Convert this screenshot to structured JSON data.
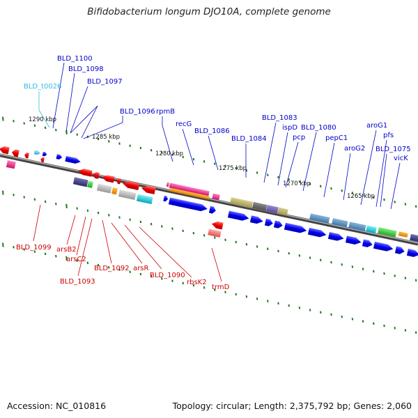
{
  "title": "Bifidobacterium longum DJO10A, complete genome",
  "footer": {
    "accession": "Accession: NC_010816",
    "summary": "Topology: circular; Length: 2,375,792 bp; Genes: 2,060"
  },
  "colors": {
    "forward_label": "#0000cc",
    "reverse_label": "#cc0000",
    "trna_label": "#33bbdd",
    "tick": "#1a7a1a",
    "backbone": "#888888"
  },
  "scale_labels": [
    "1290 kbp",
    "1285 kbp",
    "1280 kbp",
    "1275 kbp",
    "1270 kbp",
    "1265 kbp"
  ],
  "forward_labels": [
    "BLD_1100",
    "BLD_1098",
    "BLD_1097",
    "BLD_1096",
    "rpmB",
    "recG",
    "BLD_1086",
    "BLD_1084",
    "BLD_1083",
    "ispD",
    "pcp",
    "BLD_1080",
    "pepC1",
    "aroG2",
    "aroG1",
    "pfs",
    "BLD_1075",
    "vicK"
  ],
  "trna_labels": [
    "BLD_t0026"
  ],
  "reverse_labels": [
    "BLD_1099",
    "arsB2",
    "arsC2",
    "BLD_1093",
    "BLD_1092",
    "arsR",
    "BLD_1090",
    "rbsK2",
    "trmD"
  ]
}
